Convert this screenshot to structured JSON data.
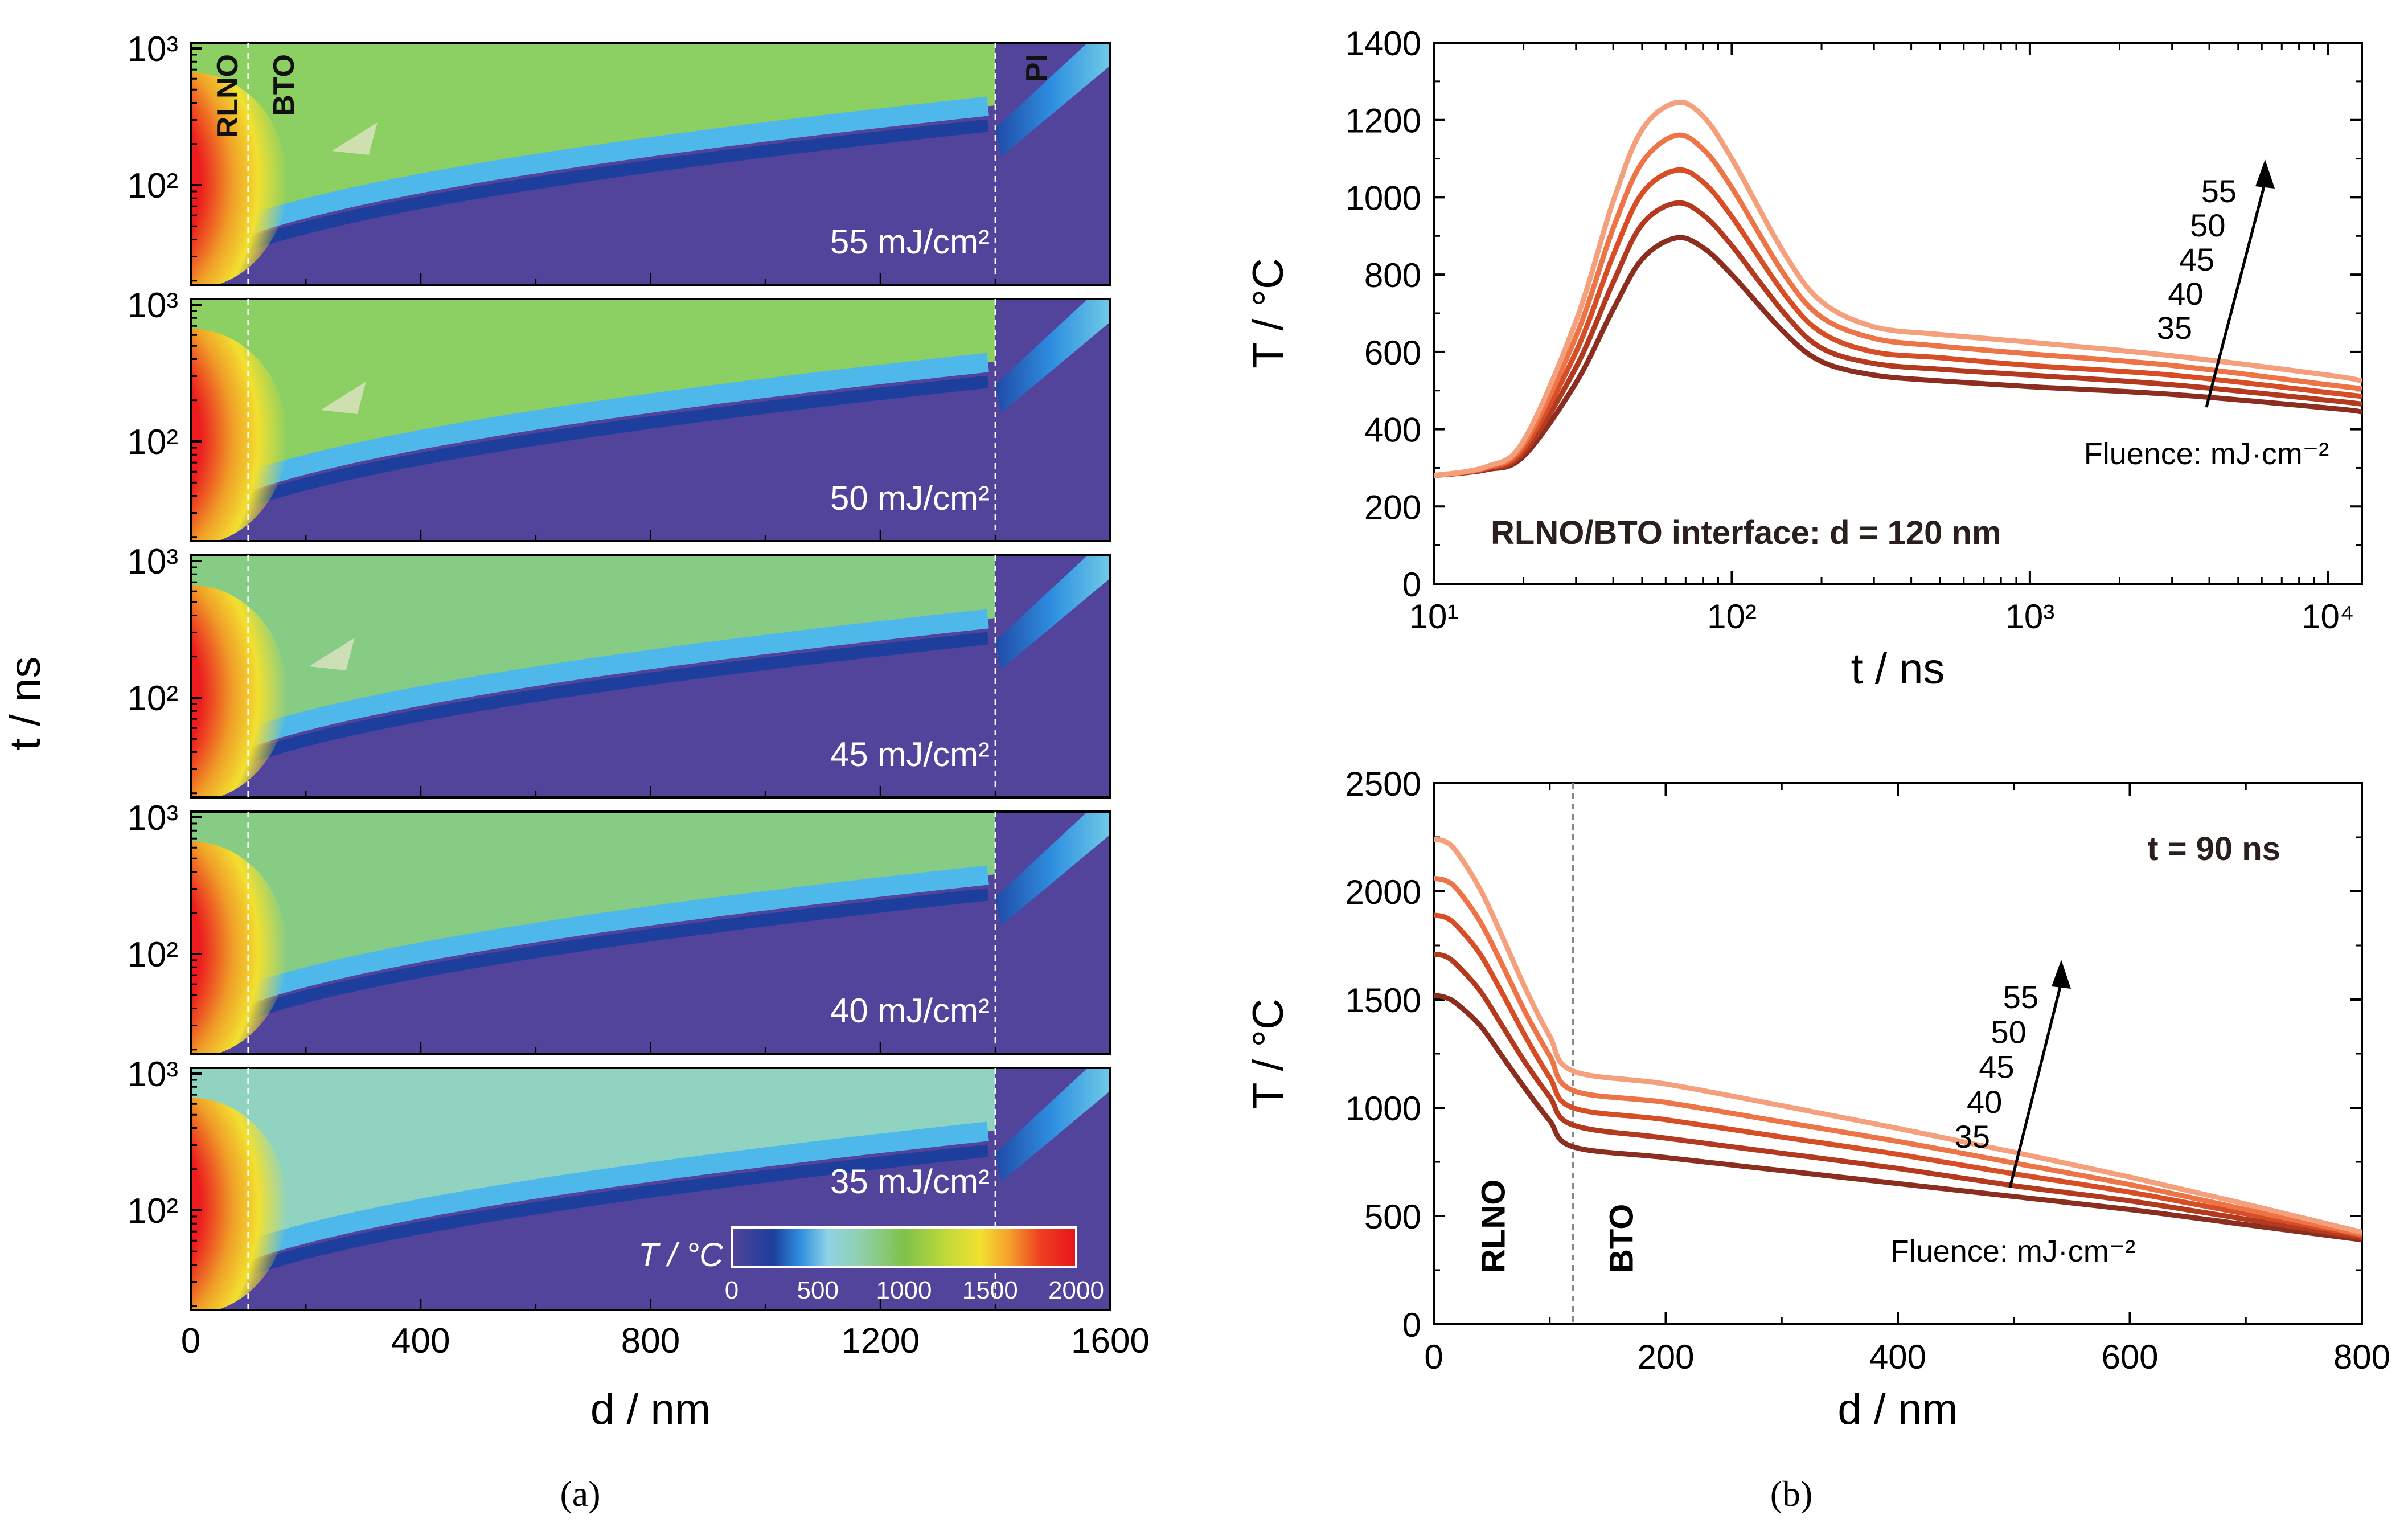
{
  "figure": {
    "panel_a_label": "(a)",
    "panel_b_label": "(b)"
  },
  "chart_data": [
    {
      "id": "a",
      "type": "heatmap",
      "xlabel": "d / nm",
      "ylabel": "t / ns",
      "xlim": [
        0,
        1600
      ],
      "xticks": [
        "0",
        "400",
        "800",
        "1200",
        "1600"
      ],
      "ytick_labels": [
        "10³",
        "10²"
      ],
      "layer_labels": [
        "RLNO",
        "BTO",
        "PI"
      ],
      "boundaries_nm": [
        100,
        1400
      ],
      "panels": [
        {
          "fluence": 55,
          "label": "55 mJ/cm²",
          "arrow": true
        },
        {
          "fluence": 50,
          "label": "50 mJ/cm²",
          "arrow": true
        },
        {
          "fluence": 45,
          "label": "45 mJ/cm²",
          "arrow": true
        },
        {
          "fluence": 40,
          "label": "40 mJ/cm²",
          "arrow": false
        },
        {
          "fluence": 35,
          "label": "35 mJ/cm²",
          "arrow": false
        }
      ],
      "colorbar": {
        "label": "T / °C",
        "range": [
          0,
          2000
        ],
        "ticks": [
          "0",
          "500",
          "1000",
          "1500",
          "2000"
        ]
      }
    },
    {
      "id": "b-top",
      "type": "line",
      "xlabel": "t / ns",
      "ylabel": "T / °C",
      "xscale": "log",
      "xlim": [
        10,
        13000
      ],
      "ylim": [
        0,
        1400
      ],
      "xtick_labels": [
        "10¹",
        "10²",
        "10³",
        "10⁴"
      ],
      "yticks": [
        "0",
        "200",
        "400",
        "600",
        "800",
        "1000",
        "1200",
        "1400"
      ],
      "annotation": "RLNO/BTO interface: d = 120 nm",
      "legend_title": "Fluence: mJ·cm⁻²",
      "series": [
        {
          "name": "35",
          "color": "#8b2e1f",
          "x": [
            10,
            15,
            20,
            30,
            40,
            50,
            65,
            80,
            100,
            150,
            200,
            300,
            500,
            1000,
            3000,
            10000,
            13000
          ],
          "values": [
            280,
            295,
            330,
            520,
            710,
            840,
            895,
            870,
            800,
            650,
            575,
            540,
            525,
            510,
            490,
            455,
            445
          ]
        },
        {
          "name": "40",
          "color": "#b3391f",
          "x": [
            10,
            15,
            20,
            30,
            40,
            50,
            65,
            80,
            100,
            150,
            200,
            300,
            500,
            1000,
            3000,
            10000,
            13000
          ],
          "values": [
            280,
            297,
            340,
            560,
            780,
            930,
            985,
            955,
            875,
            700,
            610,
            570,
            555,
            540,
            515,
            475,
            465
          ]
        },
        {
          "name": "45",
          "color": "#d74e26",
          "x": [
            10,
            15,
            20,
            30,
            40,
            50,
            65,
            80,
            100,
            150,
            200,
            300,
            500,
            1000,
            3000,
            10000,
            13000
          ],
          "values": [
            280,
            299,
            350,
            600,
            850,
            1010,
            1070,
            1040,
            950,
            750,
            650,
            600,
            585,
            565,
            540,
            495,
            485
          ]
        },
        {
          "name": "50",
          "color": "#ec7446",
          "x": [
            10,
            15,
            20,
            30,
            40,
            50,
            65,
            80,
            100,
            150,
            200,
            300,
            500,
            1000,
            3000,
            10000,
            13000
          ],
          "values": [
            280,
            301,
            360,
            640,
            920,
            1090,
            1160,
            1125,
            1025,
            800,
            690,
            635,
            615,
            595,
            565,
            515,
            505
          ]
        },
        {
          "name": "55",
          "color": "#f4a07c",
          "x": [
            10,
            15,
            20,
            30,
            40,
            50,
            65,
            80,
            100,
            150,
            200,
            300,
            500,
            1000,
            3000,
            10000,
            13000
          ],
          "values": [
            280,
            303,
            370,
            680,
            990,
            1175,
            1245,
            1210,
            1100,
            855,
            730,
            665,
            645,
            625,
            590,
            540,
            525
          ]
        }
      ]
    },
    {
      "id": "b-bottom",
      "type": "line",
      "xlabel": "d / nm",
      "ylabel": "T / °C",
      "xlim": [
        0,
        800
      ],
      "ylim": [
        0,
        2500
      ],
      "xticks": [
        "0",
        "200",
        "400",
        "600",
        "800"
      ],
      "yticks": [
        "0",
        "500",
        "1000",
        "1500",
        "2000",
        "2500"
      ],
      "annotation": "t = 90 ns",
      "layer_labels": [
        "RLNO",
        "BTO"
      ],
      "boundary_nm": 120,
      "legend_title": "Fluence: mJ·cm⁻²",
      "series": [
        {
          "name": "35",
          "color": "#8b2e1f",
          "x": [
            0,
            10,
            20,
            40,
            60,
            80,
            100,
            120,
            200,
            300,
            400,
            500,
            600,
            700,
            800
          ],
          "values": [
            1520,
            1510,
            1480,
            1380,
            1230,
            1080,
            940,
            820,
            770,
            710,
            650,
            590,
            530,
            460,
            390
          ]
        },
        {
          "name": "40",
          "color": "#b3391f",
          "x": [
            0,
            10,
            20,
            40,
            60,
            80,
            100,
            120,
            200,
            300,
            400,
            500,
            600,
            700,
            800
          ],
          "values": [
            1710,
            1700,
            1660,
            1540,
            1370,
            1200,
            1050,
            920,
            860,
            790,
            720,
            640,
            570,
            485,
            400
          ]
        },
        {
          "name": "45",
          "color": "#d74e26",
          "x": [
            0,
            10,
            20,
            40,
            60,
            80,
            100,
            120,
            200,
            300,
            400,
            500,
            600,
            700,
            800
          ],
          "values": [
            1890,
            1880,
            1840,
            1710,
            1520,
            1320,
            1140,
            1000,
            945,
            865,
            785,
            695,
            610,
            510,
            410
          ]
        },
        {
          "name": "50",
          "color": "#ec7446",
          "x": [
            0,
            10,
            20,
            40,
            60,
            80,
            100,
            120,
            200,
            300,
            400,
            500,
            600,
            700,
            800
          ],
          "values": [
            2060,
            2050,
            2010,
            1860,
            1650,
            1430,
            1240,
            1080,
            1025,
            935,
            845,
            745,
            645,
            530,
            415
          ]
        },
        {
          "name": "55",
          "color": "#f4a07c",
          "x": [
            0,
            10,
            20,
            40,
            60,
            80,
            100,
            120,
            200,
            300,
            400,
            500,
            600,
            700,
            800
          ],
          "values": [
            2240,
            2230,
            2180,
            2010,
            1780,
            1540,
            1330,
            1170,
            1110,
            1010,
            905,
            795,
            680,
            555,
            425
          ]
        }
      ]
    }
  ]
}
